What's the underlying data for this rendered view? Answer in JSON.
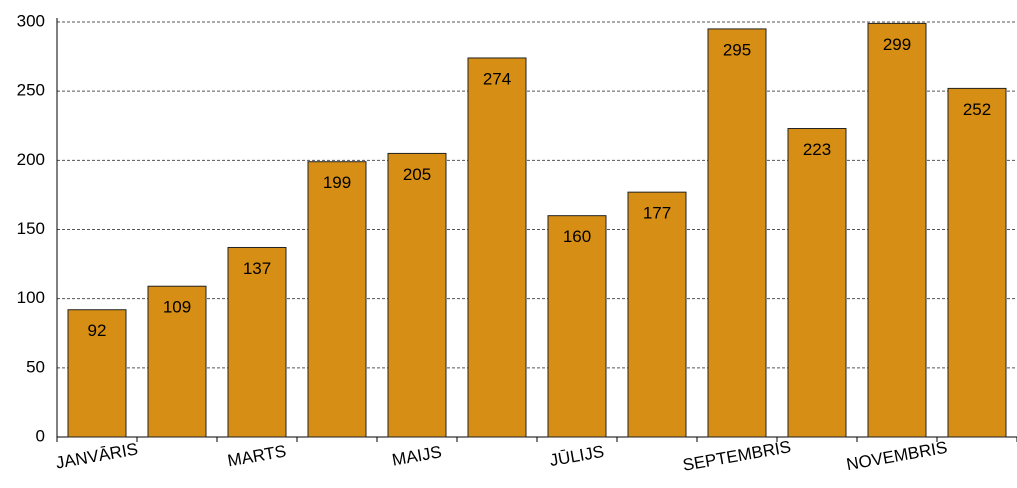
{
  "chart_data": {
    "type": "bar",
    "categories": [
      "JANVĀRIS",
      null,
      "MARTS",
      null,
      "MAIJS",
      null,
      "JŪLIJS",
      null,
      "SEPTEMBRIS",
      null,
      "NOVEMBRIS",
      null
    ],
    "values": [
      92,
      109,
      137,
      199,
      205,
      274,
      160,
      177,
      295,
      223,
      299,
      252
    ],
    "color": "#d68f14",
    "ylim": [
      0,
      300
    ],
    "yticks": [
      0,
      50,
      100,
      150,
      200,
      250,
      300
    ],
    "grid": true
  }
}
